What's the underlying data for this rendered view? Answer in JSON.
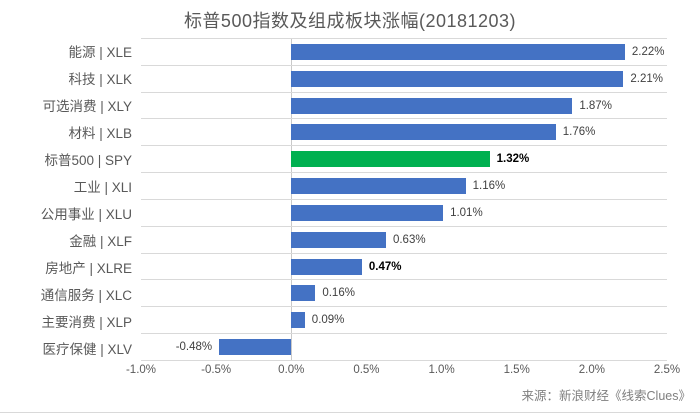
{
  "chart_data": {
    "type": "bar",
    "orientation": "horizontal",
    "title": "标普500指数及组成板块涨幅(20181203)",
    "categories": [
      "能源 | XLE",
      "科技 | XLK",
      "可选消费 | XLY",
      "材料 | XLB",
      "标普500 | SPY",
      "工业 | XLI",
      "公用事业 | XLU",
      "金融 | XLF",
      "房地产 | XLRE",
      "通信服务 | XLC",
      "主要消费 | XLP",
      "医疗保健 | XLV"
    ],
    "values": [
      2.22,
      2.21,
      1.87,
      1.76,
      1.32,
      1.16,
      1.01,
      0.63,
      0.47,
      0.16,
      0.09,
      -0.48
    ],
    "value_labels": [
      "2.22%",
      "2.21%",
      "1.87%",
      "1.76%",
      "1.32%",
      "1.16%",
      "1.01%",
      "0.63%",
      "0.47%",
      "0.16%",
      "0.09%",
      "-0.48%"
    ],
    "bold_value_label_indexes": [
      4,
      8
    ],
    "highlight_index": 4,
    "xlim": [
      -1.0,
      2.5
    ],
    "x_tick_values": [
      -1.0,
      -0.5,
      0.0,
      0.5,
      1.0,
      1.5,
      2.0,
      2.5
    ],
    "x_tick_labels": [
      "-1.0%",
      "-0.5%",
      "0.0%",
      "0.5%",
      "1.0%",
      "1.5%",
      "2.0%",
      "2.5%"
    ],
    "grid": "category-separators-on",
    "legend": "none",
    "colors": {
      "bar": "#4472c4",
      "highlight_bar": "#00b050",
      "gridline": "#d9d9d9",
      "zero_axis": "#c9c9c9",
      "title_text": "#595959",
      "category_text": "#595959",
      "tick_text": "#595959",
      "value_text": "#404040",
      "source_text": "#808080"
    }
  },
  "footer": {
    "source": "来源：新浪财经《线索Clues》"
  }
}
